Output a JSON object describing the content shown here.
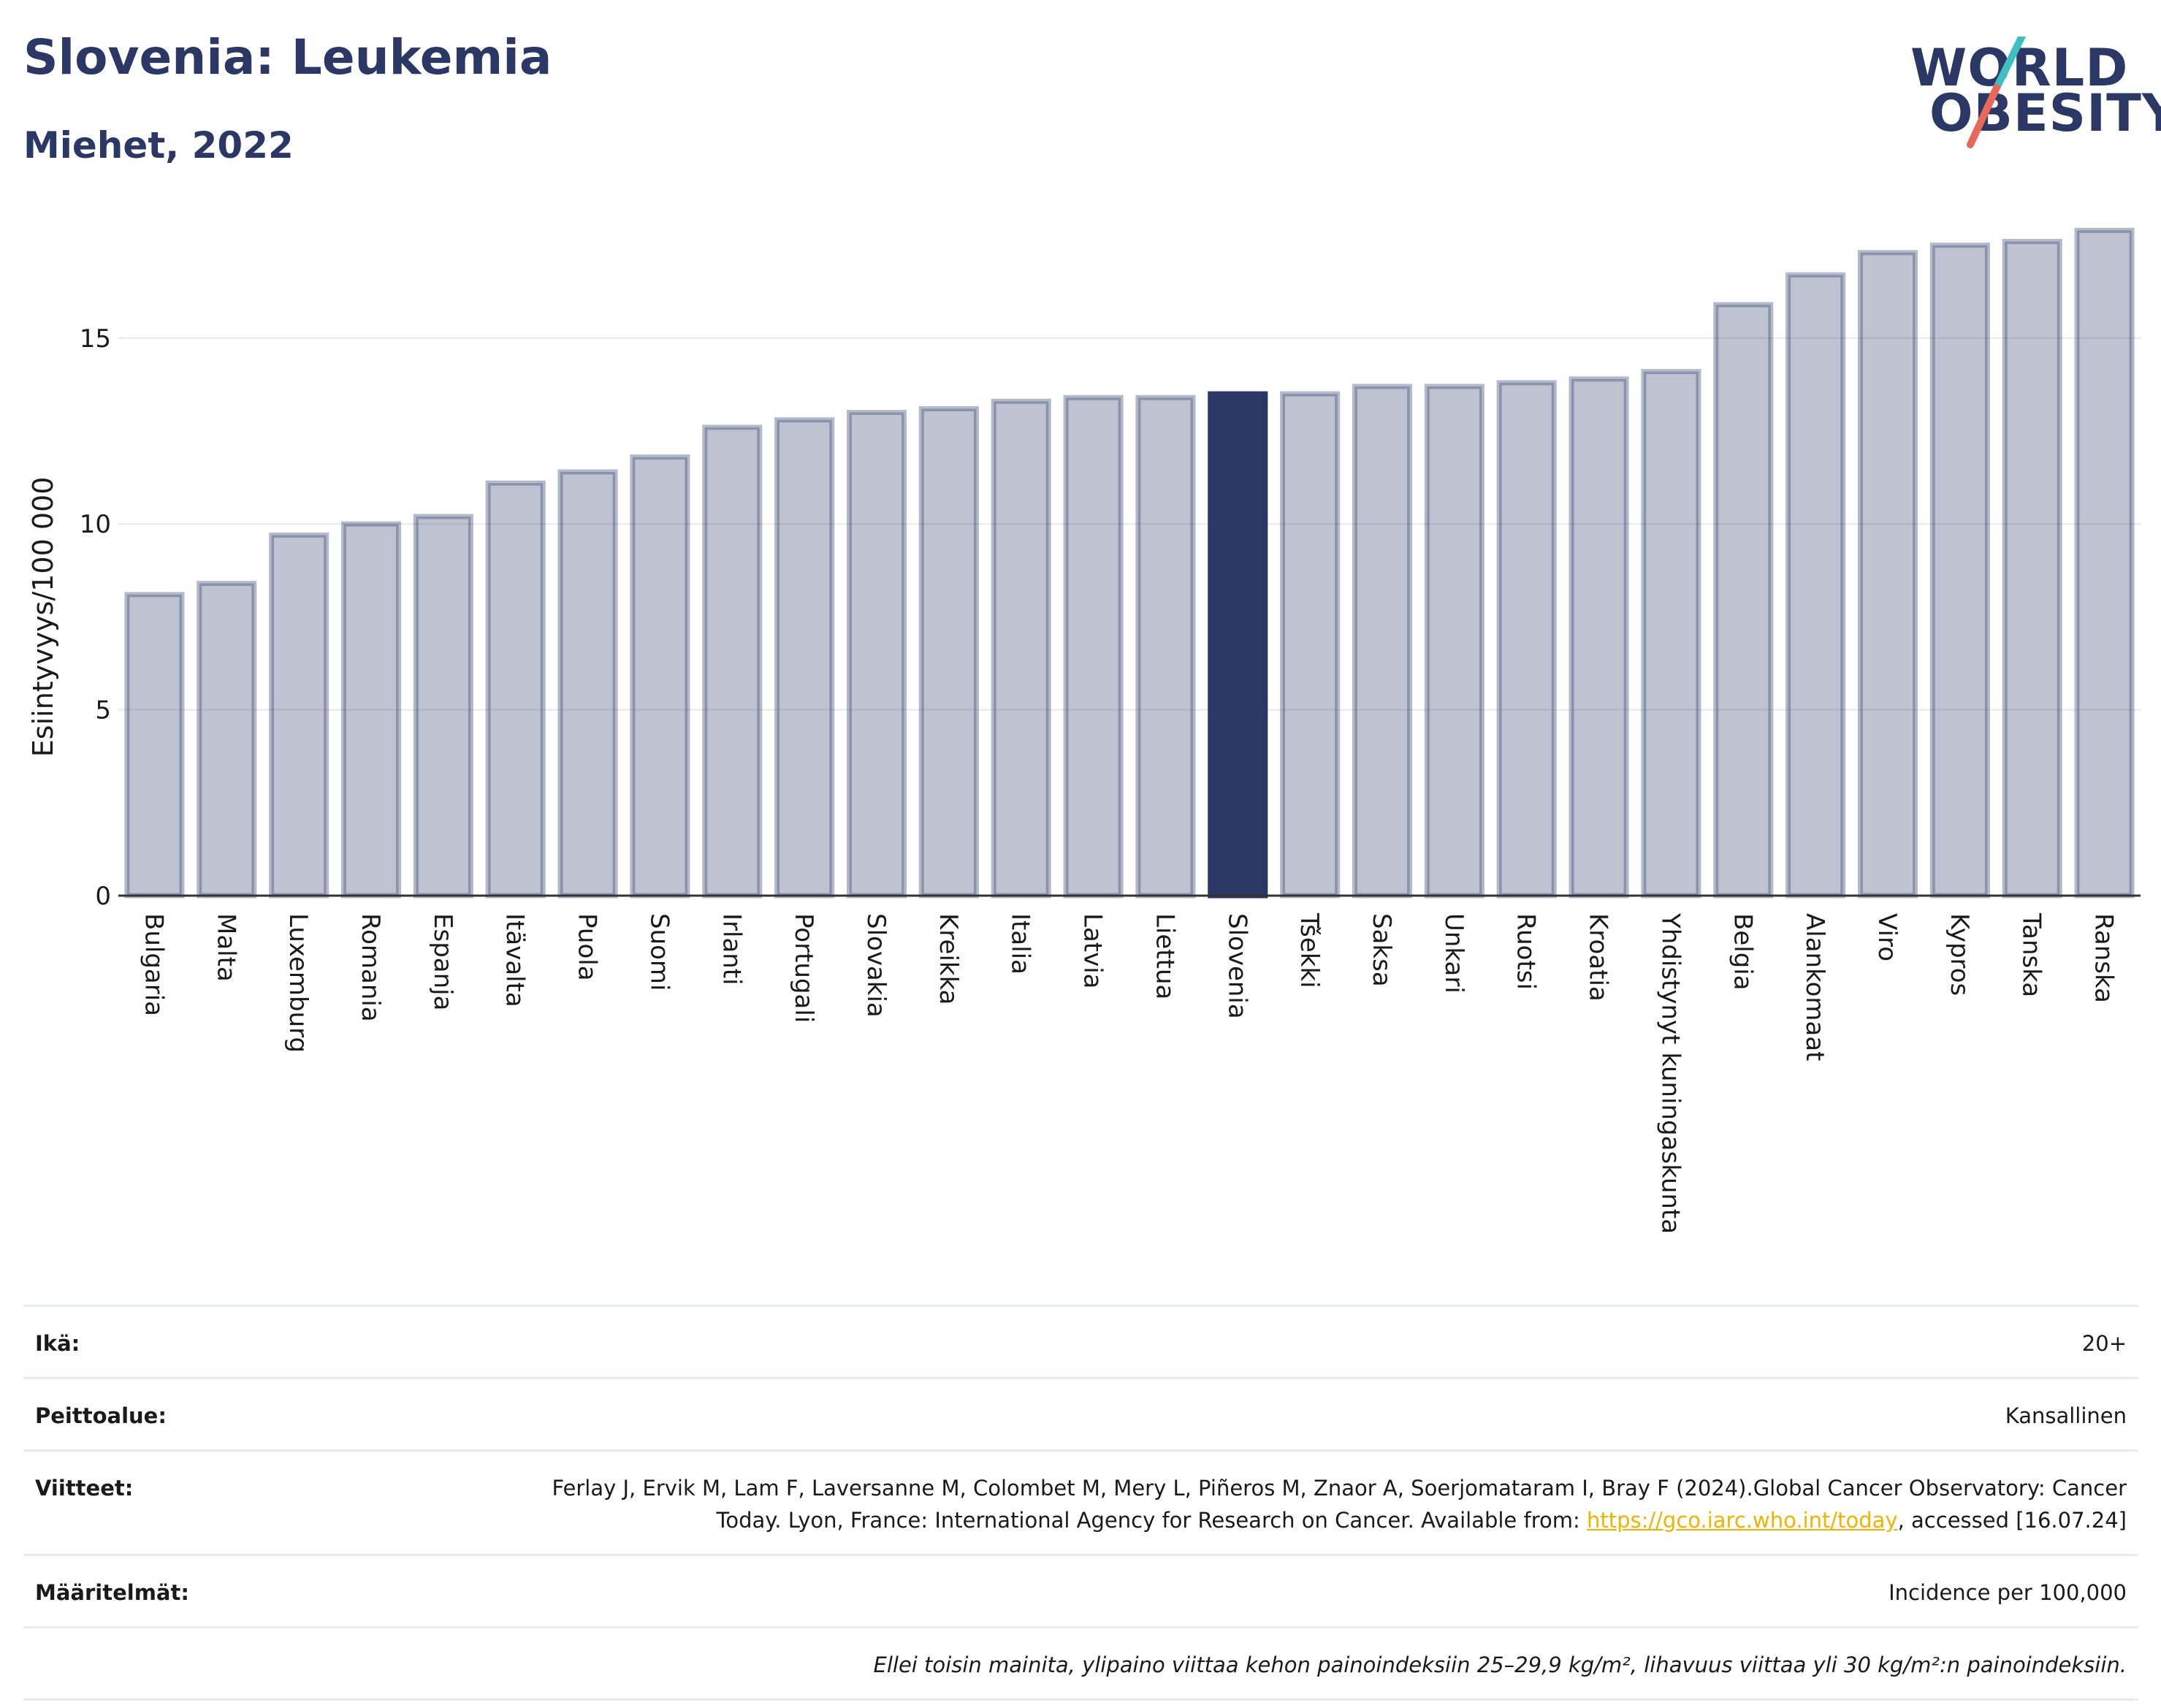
{
  "header": {
    "title": "Slovenia: Leukemia",
    "subtitle": "Miehet, 2022"
  },
  "logo": {
    "line1": "WORLD",
    "line2": "OBESITY",
    "slash_colors": [
      "#3fbfbf",
      "#e8685a"
    ]
  },
  "colors": {
    "bar": "#2b3866",
    "bar_fill_opacity": 0.3,
    "highlight": "#2b3866",
    "grid": "#e6e8ee",
    "axis": "#333333"
  },
  "chart_data": {
    "type": "bar",
    "title": "Slovenia: Leukemia",
    "subtitle": "Miehet, 2022",
    "ylabel": "Esiintyvyys/100 000",
    "xlabel": "",
    "ylim": [
      0,
      18.2
    ],
    "yticks": [
      0,
      5,
      10,
      15
    ],
    "grid": true,
    "highlight": "Slovenia",
    "categories": [
      "Bulgaria",
      "Malta",
      "Luxemburg",
      "Romania",
      "Espanja",
      "Itävalta",
      "Puola",
      "Suomi",
      "Irlanti",
      "Portugali",
      "Slovakia",
      "Kreikka",
      "Italia",
      "Latvia",
      "Liettua",
      "Slovenia",
      "Tšekki",
      "Saksa",
      "Unkari",
      "Ruotsi",
      "Kroatia",
      "Yhdistynyt kuningaskunta",
      "Belgia",
      "Alankomaat",
      "Viro",
      "Kypros",
      "Tanska",
      "Ranska"
    ],
    "values": [
      8.1,
      8.4,
      9.7,
      10.0,
      10.2,
      11.1,
      11.4,
      11.8,
      12.6,
      12.8,
      13.0,
      13.1,
      13.3,
      13.4,
      13.4,
      13.5,
      13.5,
      13.7,
      13.7,
      13.8,
      13.9,
      14.1,
      15.9,
      16.7,
      17.3,
      17.5,
      17.6,
      17.9
    ]
  },
  "info": {
    "age_label": "Ikä:",
    "age_value": "20+",
    "coverage_label": "Peittoalue:",
    "coverage_value": "Kansallinen",
    "refs_label": "Viitteet:",
    "refs_text_1": "Ferlay J, Ervik M, Lam F, Laversanne M, Colombet M, Mery L, Piñeros M, Znaor A, Soerjomataram I, Bray F (2024).Global Cancer Observatory: Cancer Today. Lyon, France: International Agency for Research on Cancer. Available from: ",
    "refs_link": "https://gco.iarc.who.int/today",
    "refs_text_2": ", accessed [16.07.24]",
    "defs_label": "Määritelmät:",
    "defs_value": "Incidence per 100,000",
    "note": "Ellei toisin mainita, ylipaino viittaa kehon painoindeksiin 25–29,9 kg/m², lihavuus viittaa yli 30 kg/m²:n painoindeksiin."
  }
}
